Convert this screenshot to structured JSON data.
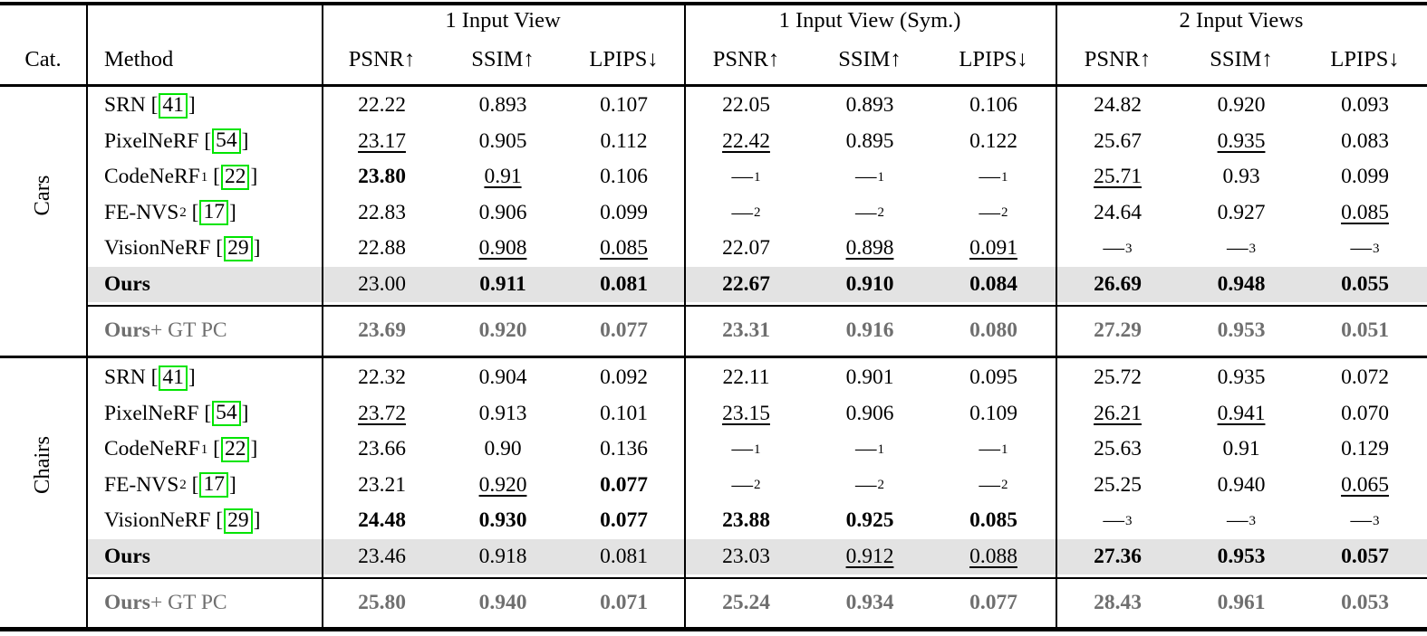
{
  "colors": {
    "highlight_row_bg": "#e3e3e3",
    "muted_row_text": "#6f6f6f",
    "citation_box_border": "#00e400",
    "rule_color": "#000000"
  },
  "table": {
    "header": {
      "cat_label": "Cat.",
      "method_label": "Method",
      "groups": [
        {
          "label": "1 Input View",
          "metrics": [
            "PSNR↑",
            "SSIM↑",
            "LPIPS↓"
          ]
        },
        {
          "label": "1 Input View (Sym.)",
          "metrics": [
            "PSNR↑",
            "SSIM↑",
            "LPIPS↓"
          ]
        },
        {
          "label": "2 Input Views",
          "metrics": [
            "PSNR↑",
            "SSIM↑",
            "LPIPS↓"
          ]
        }
      ]
    },
    "sections": [
      {
        "category": "Cars",
        "rows": [
          {
            "method": "SRN",
            "cite": "41",
            "cells": [
              {
                "v": "22.22"
              },
              {
                "v": "0.893"
              },
              {
                "v": "0.107"
              },
              {
                "v": "22.05"
              },
              {
                "v": "0.893"
              },
              {
                "v": "0.106"
              },
              {
                "v": "24.82"
              },
              {
                "v": "0.920"
              },
              {
                "v": "0.093"
              }
            ]
          },
          {
            "method": "PixelNeRF",
            "cite": "54",
            "cells": [
              {
                "v": "23.17",
                "s": "u"
              },
              {
                "v": "0.905"
              },
              {
                "v": "0.112"
              },
              {
                "v": "22.42",
                "s": "u"
              },
              {
                "v": "0.895"
              },
              {
                "v": "0.122"
              },
              {
                "v": "25.67"
              },
              {
                "v": "0.935",
                "s": "u"
              },
              {
                "v": "0.083"
              }
            ]
          },
          {
            "method": "CodeNeRF",
            "method_sup": "1",
            "cite": "22",
            "cells": [
              {
                "v": "23.80",
                "s": "b"
              },
              {
                "v": "0.91",
                "s": "u"
              },
              {
                "v": "0.106"
              },
              {
                "v": "—",
                "sup": "1",
                "s": "dash"
              },
              {
                "v": "—",
                "sup": "1",
                "s": "dash"
              },
              {
                "v": "—",
                "sup": "1",
                "s": "dash"
              },
              {
                "v": "25.71",
                "s": "u"
              },
              {
                "v": "0.93"
              },
              {
                "v": "0.099"
              }
            ]
          },
          {
            "method": "FE-NVS",
            "method_sup": "2",
            "cite": "17",
            "cells": [
              {
                "v": "22.83"
              },
              {
                "v": "0.906"
              },
              {
                "v": "0.099"
              },
              {
                "v": "—",
                "sup": "2",
                "s": "dash"
              },
              {
                "v": "—",
                "sup": "2",
                "s": "dash"
              },
              {
                "v": "—",
                "sup": "2",
                "s": "dash"
              },
              {
                "v": "24.64"
              },
              {
                "v": "0.927"
              },
              {
                "v": "0.085",
                "s": "u"
              }
            ]
          },
          {
            "method": "VisionNeRF",
            "cite": "29",
            "cells": [
              {
                "v": "22.88"
              },
              {
                "v": "0.908",
                "s": "u"
              },
              {
                "v": "0.085",
                "s": "u"
              },
              {
                "v": "22.07"
              },
              {
                "v": "0.898",
                "s": "u"
              },
              {
                "v": "0.091",
                "s": "u"
              },
              {
                "v": "—",
                "sup": "3",
                "s": "dash"
              },
              {
                "v": "—",
                "sup": "3",
                "s": "dash"
              },
              {
                "v": "—",
                "sup": "3",
                "s": "dash"
              }
            ]
          },
          {
            "method": "Ours",
            "bold": true,
            "highlight": true,
            "cells": [
              {
                "v": "23.00"
              },
              {
                "v": "0.911",
                "s": "b"
              },
              {
                "v": "0.081",
                "s": "b"
              },
              {
                "v": "22.67",
                "s": "b"
              },
              {
                "v": "0.910",
                "s": "b"
              },
              {
                "v": "0.084",
                "s": "b"
              },
              {
                "v": "26.69",
                "s": "b"
              },
              {
                "v": "0.948",
                "s": "b"
              },
              {
                "v": "0.055",
                "s": "b"
              }
            ]
          }
        ],
        "extra_row": {
          "method_main": "Ours",
          "method_rest": " + GT PC",
          "cells": [
            "23.69",
            "0.920",
            "0.077",
            "23.31",
            "0.916",
            "0.080",
            "27.29",
            "0.953",
            "0.051"
          ]
        }
      },
      {
        "category": "Chairs",
        "rows": [
          {
            "method": "SRN",
            "cite": "41",
            "cells": [
              {
                "v": "22.32"
              },
              {
                "v": "0.904"
              },
              {
                "v": "0.092"
              },
              {
                "v": "22.11"
              },
              {
                "v": "0.901"
              },
              {
                "v": "0.095"
              },
              {
                "v": "25.72"
              },
              {
                "v": "0.935"
              },
              {
                "v": "0.072"
              }
            ]
          },
          {
            "method": "PixelNeRF",
            "cite": "54",
            "cells": [
              {
                "v": "23.72",
                "s": "u"
              },
              {
                "v": "0.913"
              },
              {
                "v": "0.101"
              },
              {
                "v": "23.15",
                "s": "u"
              },
              {
                "v": "0.906"
              },
              {
                "v": "0.109"
              },
              {
                "v": "26.21",
                "s": "u"
              },
              {
                "v": "0.941",
                "s": "u"
              },
              {
                "v": "0.070"
              }
            ]
          },
          {
            "method": "CodeNeRF",
            "method_sup": "1",
            "cite": "22",
            "cells": [
              {
                "v": "23.66"
              },
              {
                "v": "0.90"
              },
              {
                "v": "0.136"
              },
              {
                "v": "—",
                "sup": "1",
                "s": "dash"
              },
              {
                "v": "—",
                "sup": "1",
                "s": "dash"
              },
              {
                "v": "—",
                "sup": "1",
                "s": "dash"
              },
              {
                "v": "25.63"
              },
              {
                "v": "0.91"
              },
              {
                "v": "0.129"
              }
            ]
          },
          {
            "method": "FE-NVS",
            "method_sup": "2",
            "cite": "17",
            "cells": [
              {
                "v": "23.21"
              },
              {
                "v": "0.920",
                "s": "u"
              },
              {
                "v": "0.077",
                "s": "b"
              },
              {
                "v": "—",
                "sup": "2",
                "s": "dash"
              },
              {
                "v": "—",
                "sup": "2",
                "s": "dash"
              },
              {
                "v": "—",
                "sup": "2",
                "s": "dash"
              },
              {
                "v": "25.25"
              },
              {
                "v": "0.940"
              },
              {
                "v": "0.065",
                "s": "u"
              }
            ]
          },
          {
            "method": "VisionNeRF",
            "cite": "29",
            "cells": [
              {
                "v": "24.48",
                "s": "b"
              },
              {
                "v": "0.930",
                "s": "b"
              },
              {
                "v": "0.077",
                "s": "b"
              },
              {
                "v": "23.88",
                "s": "b"
              },
              {
                "v": "0.925",
                "s": "b"
              },
              {
                "v": "0.085",
                "s": "b"
              },
              {
                "v": "—",
                "sup": "3",
                "s": "dash"
              },
              {
                "v": "—",
                "sup": "3",
                "s": "dash"
              },
              {
                "v": "—",
                "sup": "3",
                "s": "dash"
              }
            ]
          },
          {
            "method": "Ours",
            "bold": true,
            "highlight": true,
            "cells": [
              {
                "v": "23.46"
              },
              {
                "v": "0.918"
              },
              {
                "v": "0.081"
              },
              {
                "v": "23.03"
              },
              {
                "v": "0.912",
                "s": "u"
              },
              {
                "v": "0.088",
                "s": "u"
              },
              {
                "v": "27.36",
                "s": "b"
              },
              {
                "v": "0.953",
                "s": "b"
              },
              {
                "v": "0.057",
                "s": "b"
              }
            ]
          }
        ],
        "extra_row": {
          "method_main": "Ours",
          "method_rest": " + GT PC",
          "cells": [
            "25.80",
            "0.940",
            "0.071",
            "25.24",
            "0.934",
            "0.077",
            "28.43",
            "0.961",
            "0.053"
          ]
        }
      }
    ]
  }
}
